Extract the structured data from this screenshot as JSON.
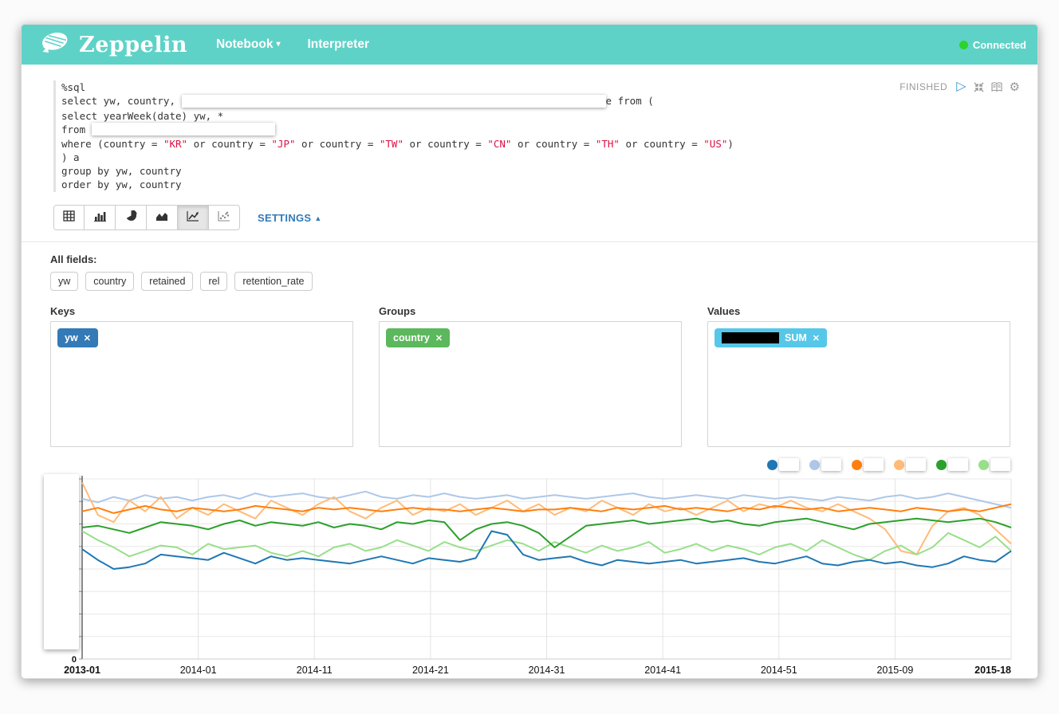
{
  "icons": {
    "caret_down": "▾",
    "caret_up": "▲",
    "play": "▷",
    "gear": "⚙",
    "close": "✕"
  },
  "header": {
    "background": "#5fd2c7",
    "brand": "Zeppelin",
    "nav": {
      "notebook": "Notebook",
      "interpreter": "Interpreter"
    },
    "status": {
      "label": "Connected",
      "dot_color": "#2bd32b"
    }
  },
  "paragraph": {
    "status_label": "FINISHED",
    "code": {
      "line1": "%sql",
      "line2_pre": "select yw, country, ",
      "line2_redacted": true,
      "line2_post": "e from (",
      "line3": "select yearWeek(date) yw, *",
      "line4_pre": "from ",
      "line4_redacted": true,
      "line5_segments": [
        {
          "text": "where (country = "
        },
        {
          "text": "\"KR\"",
          "string": true
        },
        {
          "text": " or country = "
        },
        {
          "text": "\"JP\"",
          "string": true
        },
        {
          "text": " or country = "
        },
        {
          "text": "\"TW\"",
          "string": true
        },
        {
          "text": " or country = "
        },
        {
          "text": "\"CN\"",
          "string": true
        },
        {
          "text": " or country = "
        },
        {
          "text": "\"TH\"",
          "string": true
        },
        {
          "text": " or country = "
        },
        {
          "text": "\"US\"",
          "string": true
        },
        {
          "text": ")"
        }
      ],
      "line6": ") a",
      "line7": "group by yw, country",
      "line8": "order by yw, country"
    }
  },
  "toolbar": {
    "buttons": [
      "table-chart",
      "bar-chart",
      "pie-chart",
      "area-chart",
      "line-chart",
      "scatter-chart"
    ],
    "active_button": "line-chart",
    "settings_label": "SETTINGS"
  },
  "settings": {
    "all_fields_label": "All fields:",
    "all_fields": [
      "yw",
      "country",
      "retained",
      "rel",
      "retention_rate"
    ],
    "keys": {
      "label": "Keys",
      "chips": [
        {
          "text": "yw",
          "color": "#337ab7"
        }
      ]
    },
    "groups": {
      "label": "Groups",
      "chips": [
        {
          "text": "country",
          "color": "#5cb85c"
        }
      ]
    },
    "values": {
      "label": "Values",
      "chips": [
        {
          "text_redacted": true,
          "agg": "SUM",
          "color": "#56c7e8"
        }
      ]
    }
  },
  "chart_data": {
    "type": "line",
    "title": "",
    "xlabel": "",
    "ylabel": "",
    "x_ticks": [
      "2013-01",
      "2014-01",
      "2014-11",
      "2014-21",
      "2014-31",
      "2014-41",
      "2014-51",
      "2015-09",
      "2015-18"
    ],
    "x_tick_bold_first_last": true,
    "y_axis": {
      "visible_min_label": "0",
      "labels_redacted": true
    },
    "grid": true,
    "legend": {
      "position": "top-right",
      "labels_redacted": true
    },
    "values_unit": "estimated-percent-of-plot-height (y-axis labels hidden in screenshot)",
    "series": [
      {
        "name": "series-1",
        "color": "#1f77b4",
        "label_redacted": true,
        "values": [
          61,
          55,
          50,
          51,
          53,
          58,
          57,
          56,
          55,
          59,
          56,
          53,
          57,
          55,
          56,
          55,
          54,
          53,
          55,
          57,
          55,
          53,
          56,
          55,
          54,
          56,
          71,
          69,
          58,
          55,
          56,
          57,
          54,
          52,
          55,
          54,
          53,
          54,
          55,
          53,
          54,
          55,
          56,
          54,
          53,
          55,
          57,
          53,
          52,
          54,
          55,
          53,
          54,
          52,
          51,
          53,
          57,
          55,
          54,
          60
        ]
      },
      {
        "name": "series-2",
        "color": "#aec7e8",
        "label_redacted": true,
        "values": [
          89,
          87,
          90,
          88,
          91,
          89,
          90,
          88,
          90,
          91,
          89,
          92,
          90,
          91,
          92,
          90,
          89,
          91,
          93,
          90,
          89,
          91,
          90,
          92,
          90,
          89,
          90,
          91,
          89,
          90,
          91,
          90,
          89,
          90,
          91,
          92,
          90,
          89,
          90,
          91,
          90,
          89,
          91,
          90,
          89,
          90,
          89,
          88,
          90,
          89,
          88,
          90,
          91,
          89,
          90,
          92,
          90,
          88,
          86,
          84
        ]
      },
      {
        "name": "series-3",
        "color": "#ff7f0e",
        "label_redacted": true,
        "values": [
          82,
          84,
          81,
          83,
          85,
          83,
          82,
          84,
          83,
          82,
          83,
          85,
          84,
          83,
          82,
          84,
          83,
          84,
          83,
          82,
          83,
          84,
          83,
          83,
          82,
          83,
          84,
          83,
          82,
          83,
          83,
          84,
          83,
          82,
          84,
          83,
          84,
          85,
          83,
          84,
          83,
          82,
          84,
          83,
          85,
          84,
          83,
          84,
          82,
          83,
          84,
          83,
          82,
          84,
          83,
          82,
          83,
          82,
          84,
          86
        ]
      },
      {
        "name": "series-4",
        "color": "#ffbb78",
        "label_redacted": true,
        "values": [
          98,
          80,
          76,
          88,
          82,
          90,
          78,
          84,
          80,
          86,
          82,
          78,
          88,
          84,
          80,
          86,
          90,
          82,
          78,
          84,
          88,
          80,
          84,
          82,
          86,
          80,
          84,
          88,
          82,
          86,
          80,
          84,
          82,
          88,
          84,
          80,
          86,
          82,
          84,
          80,
          84,
          88,
          82,
          86,
          84,
          88,
          84,
          82,
          86,
          82,
          78,
          72,
          60,
          58,
          74,
          82,
          84,
          80,
          72,
          64
        ]
      },
      {
        "name": "series-5",
        "color": "#2ca02c",
        "label_redacted": true,
        "values": [
          73,
          74,
          72,
          70,
          73,
          76,
          75,
          74,
          72,
          75,
          77,
          74,
          76,
          75,
          74,
          76,
          73,
          75,
          74,
          72,
          76,
          75,
          77,
          76,
          66,
          72,
          75,
          76,
          74,
          70,
          62,
          68,
          74,
          75,
          76,
          77,
          75,
          76,
          77,
          78,
          76,
          77,
          75,
          74,
          76,
          77,
          78,
          76,
          74,
          72,
          75,
          76,
          77,
          78,
          77,
          76,
          77,
          78,
          76,
          73
        ]
      },
      {
        "name": "series-6",
        "color": "#98df8a",
        "label_redacted": true,
        "values": [
          71,
          66,
          62,
          57,
          60,
          63,
          62,
          58,
          64,
          61,
          62,
          63,
          59,
          57,
          60,
          57,
          62,
          64,
          60,
          62,
          66,
          63,
          60,
          65,
          62,
          60,
          63,
          66,
          64,
          60,
          65,
          62,
          59,
          63,
          60,
          62,
          65,
          59,
          61,
          64,
          60,
          63,
          61,
          58,
          62,
          64,
          60,
          66,
          62,
          58,
          55,
          60,
          63,
          58,
          62,
          70,
          66,
          62,
          68,
          60
        ]
      }
    ]
  }
}
